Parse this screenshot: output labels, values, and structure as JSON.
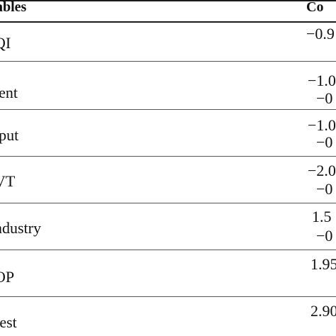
{
  "table": {
    "header": {
      "variables": "ables",
      "coefficient": "Co"
    },
    "rows": [
      {
        "variable": "QI",
        "values": [
          "−0.9"
        ]
      },
      {
        "variable": "tent",
        "values": [
          "−1.0",
          "−0"
        ]
      },
      {
        "variable": "tput",
        "values": [
          "−1.0",
          "−0"
        ]
      },
      {
        "variable": "VT",
        "values": [
          "−2.0",
          "−0"
        ]
      },
      {
        "variable": "ndustry",
        "values": [
          "1.5",
          "−0"
        ]
      },
      {
        "variable": "OP",
        "values": [
          "1.95"
        ]
      },
      {
        "variable": "rest",
        "values": [
          "2.90"
        ]
      }
    ]
  }
}
